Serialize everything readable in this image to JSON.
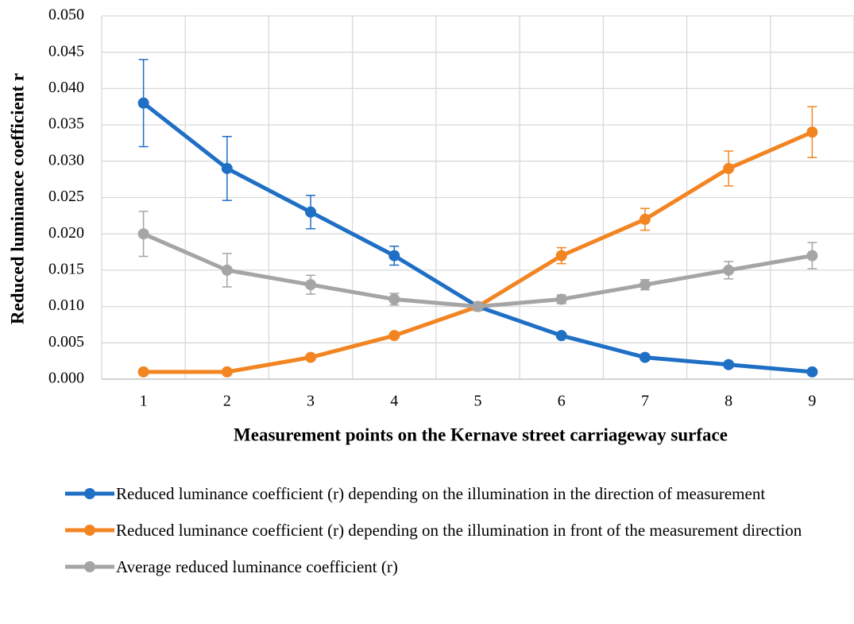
{
  "chart_data": {
    "type": "line",
    "xlabel": "Measurement points on the Kernave street carriageway surface",
    "ylabel": "Reduced luminance coefficient r",
    "categories": [
      "1",
      "2",
      "3",
      "4",
      "5",
      "6",
      "7",
      "8",
      "9"
    ],
    "series": [
      {
        "name": "Reduced luminance coefficient (r) depending on the illumination in the direction of measurement",
        "color": "#1f6fc5",
        "values": [
          0.038,
          0.029,
          0.023,
          0.017,
          0.01,
          0.006,
          0.003,
          0.002,
          0.001
        ],
        "errors": [
          0.006,
          0.0044,
          0.0023,
          0.0013,
          null,
          null,
          null,
          null,
          null
        ]
      },
      {
        "name": "Reduced luminance coefficient (r) depending on the illumination in front of the measurement direction",
        "color": "#f28522",
        "values": [
          0.001,
          0.001,
          0.003,
          0.006,
          0.01,
          0.017,
          0.022,
          0.029,
          0.034
        ],
        "errors": [
          null,
          null,
          null,
          null,
          null,
          0.0011,
          0.0015,
          0.0024,
          0.0035
        ]
      },
      {
        "name": "Average reduced luminance coefficient (r)",
        "color": "#a5a5a5",
        "values": [
          0.02,
          0.015,
          0.013,
          0.011,
          0.01,
          0.011,
          0.013,
          0.015,
          0.017
        ],
        "errors": [
          0.0031,
          0.0023,
          0.0013,
          0.0008,
          0.0006,
          0.0006,
          0.0007,
          0.0012,
          0.0018
        ]
      }
    ],
    "ylim": [
      0,
      0.05
    ],
    "yticks": [
      {
        "value": 0,
        "label": "0.000"
      },
      {
        "value": 0.005,
        "label": "0.005"
      },
      {
        "value": 0.01,
        "label": "0.010"
      },
      {
        "value": 0.015,
        "label": "0.015"
      },
      {
        "value": 0.02,
        "label": "0.020"
      },
      {
        "value": 0.025,
        "label": "0.025"
      },
      {
        "value": 0.03,
        "label": "0.030"
      },
      {
        "value": 0.035,
        "label": "0.035"
      },
      {
        "value": 0.04,
        "label": "0.040"
      },
      {
        "value": 0.045,
        "label": "0.045"
      },
      {
        "value": 0.05,
        "label": "0.050"
      }
    ],
    "grid": true,
    "legend": "bottom"
  }
}
